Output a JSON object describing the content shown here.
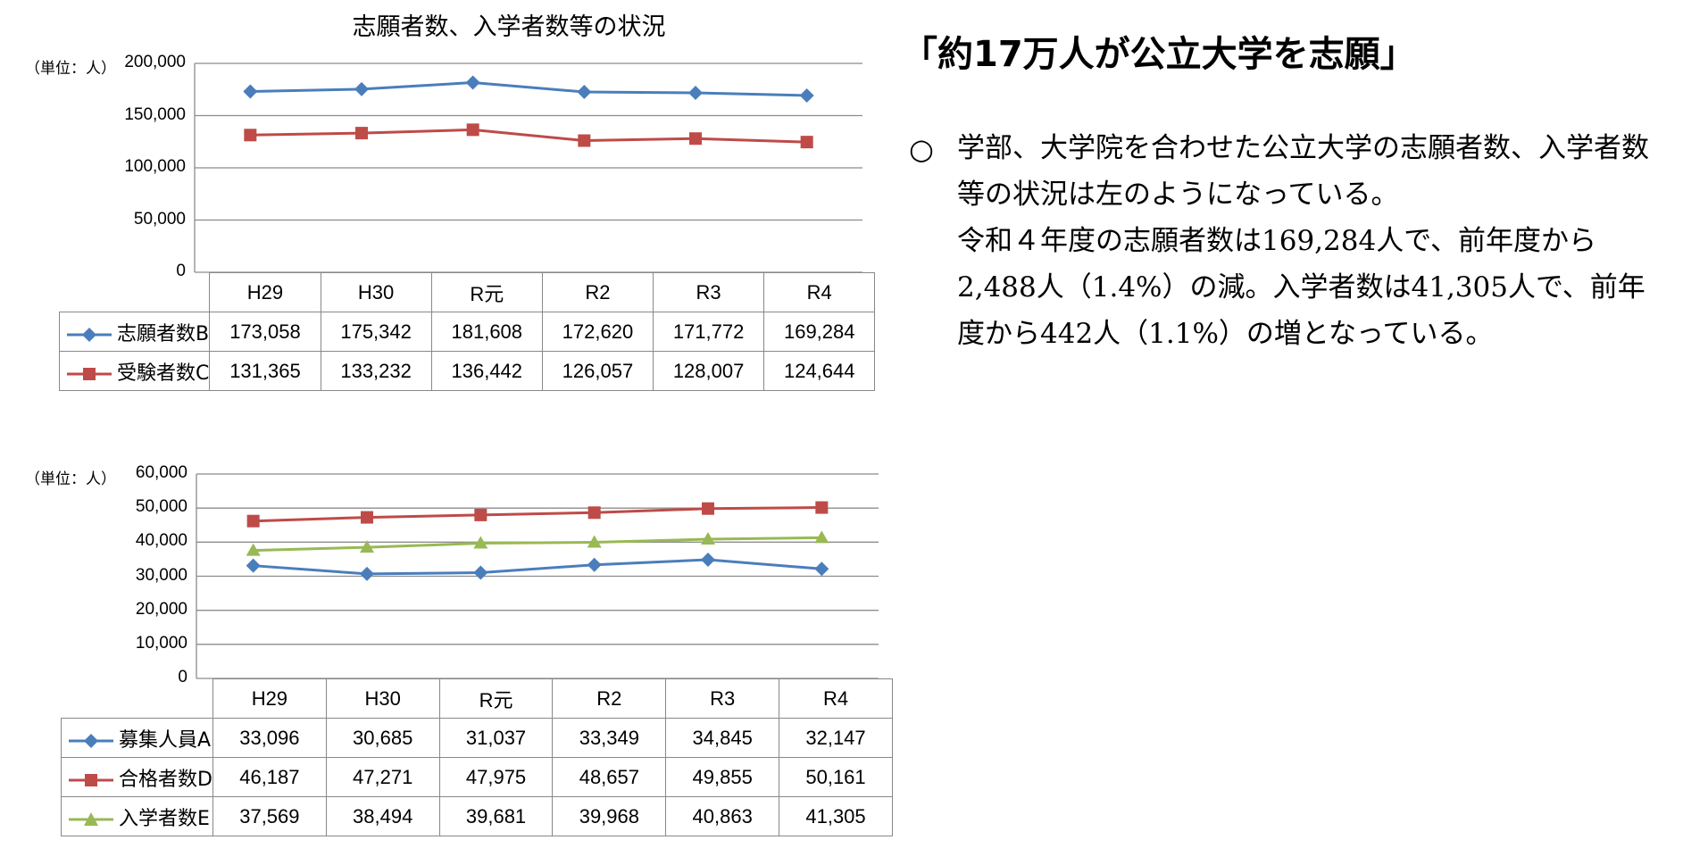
{
  "chart_data": [
    {
      "type": "line",
      "title": "志願者数、入学者数等の状況",
      "unit_label": "（単位：人）",
      "categories": [
        "H29",
        "H30",
        "R元",
        "R2",
        "R3",
        "R4"
      ],
      "ylim": [
        0,
        200000
      ],
      "yticks": [
        "200,000",
        "150,000",
        "100,000",
        "50,000",
        "0"
      ],
      "grid": true,
      "series": [
        {
          "name": "志願者数B",
          "color": "#4a7ebb",
          "marker": "diamond",
          "values": [
            173058,
            175342,
            181608,
            172620,
            171772,
            169284
          ],
          "labels": [
            "173,058",
            "175,342",
            "181,608",
            "172,620",
            "171,772",
            "169,284"
          ]
        },
        {
          "name": "受験者数C",
          "color": "#be4b48",
          "marker": "square",
          "values": [
            131365,
            133232,
            136442,
            126057,
            128007,
            124644
          ],
          "labels": [
            "131,365",
            "133,232",
            "136,442",
            "126,057",
            "128,007",
            "124,644"
          ]
        }
      ]
    },
    {
      "type": "line",
      "unit_label": "（単位：人）",
      "categories": [
        "H29",
        "H30",
        "R元",
        "R2",
        "R3",
        "R4"
      ],
      "ylim": [
        0,
        60000
      ],
      "yticks": [
        "60,000",
        "50,000",
        "40,000",
        "30,000",
        "20,000",
        "10,000",
        "0"
      ],
      "grid": true,
      "series": [
        {
          "name": "募集人員A",
          "color": "#4a7ebb",
          "marker": "diamond",
          "values": [
            33096,
            30685,
            31037,
            33349,
            34845,
            32147
          ],
          "labels": [
            "33,096",
            "30,685",
            "31,037",
            "33,349",
            "34,845",
            "32,147"
          ]
        },
        {
          "name": "合格者数D",
          "color": "#be4b48",
          "marker": "square",
          "values": [
            46187,
            47271,
            47975,
            48657,
            49855,
            50161
          ],
          "labels": [
            "46,187",
            "47,271",
            "47,975",
            "48,657",
            "49,855",
            "50,161"
          ]
        },
        {
          "name": "入学者数E",
          "color": "#98b954",
          "marker": "triangle",
          "values": [
            37569,
            38494,
            39681,
            39968,
            40863,
            41305
          ],
          "labels": [
            "37,569",
            "38,494",
            "39,681",
            "39,968",
            "40,863",
            "41,305"
          ]
        }
      ]
    }
  ],
  "text_panel": {
    "headline": "「約17万人が公立大学を志願」",
    "bullet": "○",
    "paragraph": "学部、大学院を合わせた公立大学の志願者数、入学者数等の状況は左のようになっている。\n令和４年度の志願者数は169,284人で、前年度から2,488人（1.4%）の減。入学者数は41,305人で、前年度から442人（1.1%）の増となっている。"
  }
}
